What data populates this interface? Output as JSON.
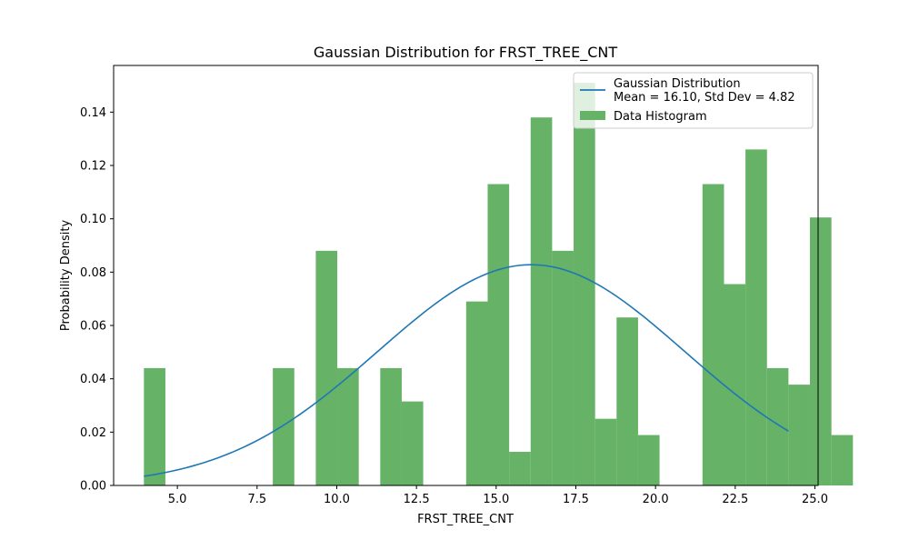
{
  "chart_data": {
    "type": "bar",
    "title": "Gaussian Distribution for FRST_TREE_CNT",
    "xlabel": "FRST_TREE_CNT",
    "ylabel": "Probability Density",
    "xlim": [
      3.0,
      25.1
    ],
    "ylim": [
      0.0,
      0.1575
    ],
    "x_ticks": [
      5.0,
      7.5,
      10.0,
      12.5,
      15.0,
      17.5,
      20.0,
      22.5,
      25.0
    ],
    "x_tick_labels": [
      "5.0",
      "7.5",
      "10.0",
      "12.5",
      "15.0",
      "17.5",
      "20.0",
      "22.5",
      "25.0"
    ],
    "y_ticks": [
      0.0,
      0.02,
      0.04,
      0.06,
      0.08,
      0.1,
      0.12,
      0.14
    ],
    "y_tick_labels": [
      "0.00",
      "0.02",
      "0.04",
      "0.06",
      "0.08",
      "0.10",
      "0.12",
      "0.14"
    ],
    "grid": false,
    "legend_position": "upper right",
    "histogram": {
      "name": "Data Histogram",
      "color": "#66b266",
      "bin_start": 3.95,
      "bin_width": 0.674,
      "values": [
        0.044,
        0,
        0,
        0,
        0,
        0,
        0.044,
        0,
        0.088,
        0.044,
        0,
        0.044,
        0.0315,
        0,
        0,
        0.069,
        0.113,
        0.0126,
        0.138,
        0.088,
        0.151,
        0.025,
        0.063,
        0.0189,
        0,
        0,
        0.113,
        0.0755,
        0.126,
        0.044,
        0.0378,
        0.1005,
        0.0189
      ]
    },
    "gaussian": {
      "name": "Gaussian Distribution\nMean = 16.10, Std Dev = 4.82",
      "color": "#1f77b4",
      "mean": 16.1,
      "std": 4.82,
      "x_range": [
        3.95,
        24.17
      ]
    },
    "legend": [
      {
        "label_lines": [
          "Gaussian Distribution",
          "Mean = 16.10, Std Dev = 4.82"
        ],
        "kind": "line",
        "color": "#1f77b4"
      },
      {
        "label_lines": [
          "Data Histogram"
        ],
        "kind": "patch",
        "color": "#66b266"
      }
    ]
  }
}
